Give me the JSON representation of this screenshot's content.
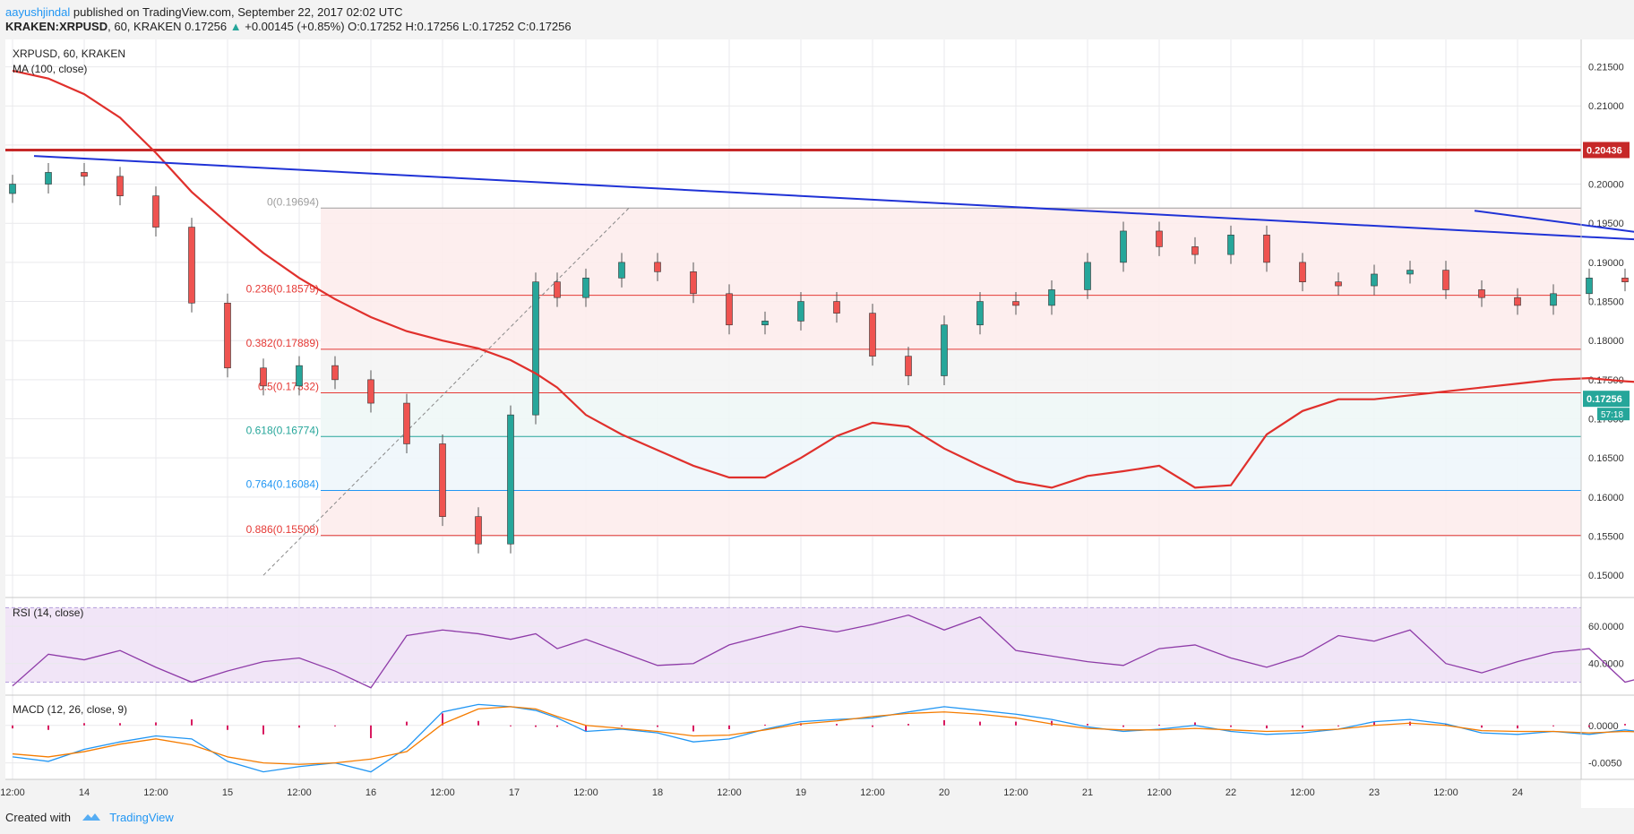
{
  "header": {
    "author": "aayushjindal",
    "published_text": "published on TradingView.com, September 22, 2017 02:02 UTC",
    "symbol_line_prefix": "KRAKEN:XRPUSD, 60, KRAKEN",
    "last": "0.17256",
    "change": "+0.00145 (+0.85%)",
    "ohlc": {
      "o": "0.17252",
      "h": "0.17256",
      "l": "0.17252",
      "c": "0.17256"
    }
  },
  "footer": {
    "created_with": "Created with",
    "brand": "TradingView"
  },
  "colors": {
    "up": "#26a69a",
    "down": "#ef5350",
    "ma": "#e0302c",
    "trend": "#1f32d6",
    "resistance": "#c62828",
    "fib_red": "#e53935",
    "fib_green": "#26a69a",
    "fib_blue": "#2196f3",
    "rsi": "#8e3ba8",
    "macd": "#2196f3",
    "signal": "#f57c00",
    "hist": "#d81b60"
  },
  "chart_data": [
    {
      "type": "candlestick",
      "title": "XRPUSD, 60, KRAKEN",
      "indicator_label": "MA (100, close)",
      "ylim": [
        0.1475,
        0.2185
      ],
      "y_ticks": [
        "0.15000",
        "0.15500",
        "0.16000",
        "0.16500",
        "0.17000",
        "0.17500",
        "0.18000",
        "0.18500",
        "0.19000",
        "0.19500",
        "0.20000",
        "0.20500",
        "0.21000",
        "0.21500"
      ],
      "x_ticks": [
        "12:00",
        "14",
        "12:00",
        "15",
        "12:00",
        "16",
        "12:00",
        "17",
        "12:00",
        "18",
        "12:00",
        "19",
        "12:00",
        "20",
        "12:00",
        "21",
        "12:00",
        "22",
        "12:00",
        "23",
        "12:00",
        "24"
      ],
      "price_label": "0.17256",
      "countdown_label": "57:18",
      "resistance": {
        "value": 0.20436,
        "label": "0.20436"
      },
      "fib_levels": [
        {
          "ratio": "0",
          "value": 0.19694,
          "label": "0(0.19694)"
        },
        {
          "ratio": "0.236",
          "value": 0.18579,
          "label": "0.236(0.18579)"
        },
        {
          "ratio": "0.382",
          "value": 0.17889,
          "label": "0.382(0.17889)"
        },
        {
          "ratio": "0.5",
          "value": 0.17332,
          "label": "0.5(0.17332)"
        },
        {
          "ratio": "0.618",
          "value": 0.16774,
          "label": "0.618(0.16774)"
        },
        {
          "ratio": "0.764",
          "value": 0.16084,
          "label": "0.764(0.16084)"
        },
        {
          "ratio": "0.886",
          "value": 0.15508,
          "label": "0.886(0.15508)"
        }
      ],
      "trendlines": [
        {
          "x1": 0.3,
          "y1": 0.2036,
          "x2": 33.4,
          "y2": 0.1878
        },
        {
          "x1": 20.4,
          "y1": 0.1966,
          "x2": 33.3,
          "y2": 0.181
        }
      ],
      "forecast": [
        {
          "x1": 27.8,
          "y1": 0.1733,
          "x2": 28.3,
          "y2": 0.1785
        },
        {
          "x1": 28.95,
          "y1": 0.1785,
          "x2": 29.25,
          "y2": 0.1653
        }
      ],
      "x": [
        0.0,
        0.5,
        1.0,
        1.5,
        2.0,
        2.5,
        3.0,
        3.5,
        4.0,
        4.5,
        5.0,
        5.5,
        6.0,
        6.5,
        6.95,
        7.3,
        7.6,
        8.0,
        8.5,
        9.0,
        9.5,
        10.0,
        10.5,
        11.0,
        11.5,
        12.0,
        12.5,
        13.0,
        13.5,
        14.0,
        14.5,
        15.0,
        15.5,
        16.0,
        16.5,
        17.0,
        17.5,
        18.0,
        18.5,
        19.0,
        19.5,
        20.0,
        20.5,
        21.0,
        21.5,
        22.0,
        22.5,
        23.0,
        23.5,
        24.0,
        24.5,
        25.0,
        25.5,
        26.0,
        26.5,
        27.0,
        27.4
      ],
      "close": [
        0.2,
        0.2015,
        0.201,
        0.1985,
        0.1945,
        0.1848,
        0.1765,
        0.1742,
        0.1768,
        0.175,
        0.172,
        0.1668,
        0.1575,
        0.154,
        0.1705,
        0.1875,
        0.1855,
        0.188,
        0.19,
        0.1888,
        0.186,
        0.182,
        0.1825,
        0.185,
        0.1835,
        0.178,
        0.1755,
        0.182,
        0.185,
        0.1845,
        0.1865,
        0.19,
        0.194,
        0.192,
        0.191,
        0.1935,
        0.19,
        0.1875,
        0.187,
        0.1885,
        0.189,
        0.1865,
        0.1855,
        0.1845,
        0.186,
        0.188,
        0.1875,
        0.184,
        0.1815,
        0.181,
        0.182,
        0.1825,
        0.18,
        0.176,
        0.1745,
        0.1725,
        0.1726
      ],
      "ma100": [
        0.2145,
        0.2135,
        0.2115,
        0.2085,
        0.204,
        0.199,
        0.195,
        0.1912,
        0.188,
        0.1853,
        0.183,
        0.1812,
        0.18,
        0.179,
        0.1775,
        0.1758,
        0.174,
        0.1705,
        0.168,
        0.166,
        0.164,
        0.1625,
        0.1625,
        0.165,
        0.1678,
        0.1695,
        0.169,
        0.1662,
        0.164,
        0.162,
        0.1612,
        0.1627,
        0.1633,
        0.164,
        0.1612,
        0.1615,
        0.168,
        0.171,
        0.1725,
        0.1725,
        0.173,
        0.1735,
        0.174,
        0.1745,
        0.175,
        0.1752,
        0.1748,
        0.1745,
        0.1745,
        0.1748,
        0.1745,
        0.174,
        0.1738,
        0.1738,
        0.174,
        0.1745,
        0.1748
      ]
    },
    {
      "type": "line",
      "title": "RSI (14, close)",
      "ylim": [
        24,
        74
      ],
      "y_ticks": [
        "40.0000",
        "60.0000"
      ],
      "bands": [
        30,
        70
      ],
      "x": [
        0.0,
        0.5,
        1.0,
        1.5,
        2.0,
        2.5,
        3.0,
        3.5,
        4.0,
        4.5,
        5.0,
        5.5,
        6.0,
        6.5,
        6.95,
        7.3,
        7.6,
        8.0,
        8.5,
        9.0,
        9.5,
        10.0,
        10.5,
        11.0,
        11.5,
        12.0,
        12.5,
        13.0,
        13.5,
        14.0,
        14.5,
        15.0,
        15.5,
        16.0,
        16.5,
        17.0,
        17.5,
        18.0,
        18.5,
        19.0,
        19.5,
        20.0,
        20.5,
        21.0,
        21.5,
        22.0,
        22.5,
        23.0,
        23.5,
        24.0,
        24.5,
        25.0,
        25.5,
        26.0,
        26.5,
        27.0,
        27.4
      ],
      "values": [
        28,
        45,
        42,
        47,
        38,
        30,
        36,
        41,
        43,
        36,
        27,
        55,
        58,
        56,
        53,
        56,
        48,
        53,
        46,
        39,
        40,
        50,
        55,
        60,
        57,
        61,
        66,
        58,
        65,
        47,
        44,
        41,
        39,
        48,
        50,
        43,
        38,
        44,
        55,
        52,
        58,
        40,
        35,
        41,
        46,
        48,
        30,
        35,
        31,
        33,
        35,
        37,
        34,
        35,
        37,
        36,
        35
      ]
    },
    {
      "type": "line",
      "title": "MACD (12, 26, close, 9)",
      "ylim": [
        -0.0072,
        0.0038
      ],
      "y_ticks": [
        "-0.0050",
        "0.0000"
      ],
      "x": [
        0.0,
        0.5,
        1.0,
        1.5,
        2.0,
        2.5,
        3.0,
        3.5,
        4.0,
        4.5,
        5.0,
        5.5,
        6.0,
        6.5,
        6.95,
        7.3,
        7.6,
        8.0,
        8.5,
        9.0,
        9.5,
        10.0,
        10.5,
        11.0,
        11.5,
        12.0,
        12.5,
        13.0,
        13.5,
        14.0,
        14.5,
        15.0,
        15.5,
        16.0,
        16.5,
        17.0,
        17.5,
        18.0,
        18.5,
        19.0,
        19.5,
        20.0,
        20.5,
        21.0,
        21.5,
        22.0,
        22.5,
        23.0,
        23.5,
        24.0,
        24.5,
        25.0,
        25.5,
        26.0,
        26.5,
        27.0,
        27.4
      ],
      "series": [
        {
          "name": "MACD",
          "values": [
            -0.0042,
            -0.0048,
            -0.0032,
            -0.0022,
            -0.0014,
            -0.0018,
            -0.0048,
            -0.0062,
            -0.0055,
            -0.005,
            -0.0062,
            -0.003,
            0.0018,
            0.0028,
            0.0025,
            0.002,
            0.001,
            -0.0008,
            -0.0005,
            -0.001,
            -0.0022,
            -0.0018,
            -0.0005,
            0.0005,
            0.0008,
            0.001,
            0.0018,
            0.0025,
            0.002,
            0.0015,
            0.0008,
            -0.0002,
            -0.0008,
            -0.0005,
            0.0,
            -0.0008,
            -0.0012,
            -0.001,
            -0.0005,
            0.0005,
            0.0008,
            0.0002,
            -0.001,
            -0.0012,
            -0.0008,
            -0.0012,
            -0.0006,
            -0.0012,
            -0.0022,
            -0.0026,
            -0.0026,
            -0.0024,
            -0.0022,
            -0.002,
            -0.0019,
            -0.0018,
            -0.0018
          ]
        },
        {
          "name": "Signal",
          "values": [
            -0.0038,
            -0.0042,
            -0.0035,
            -0.0025,
            -0.0018,
            -0.0026,
            -0.0042,
            -0.005,
            -0.0052,
            -0.005,
            -0.0045,
            -0.0035,
            0.0002,
            0.0022,
            0.0025,
            0.0022,
            0.0012,
            0.0,
            -0.0004,
            -0.0008,
            -0.0014,
            -0.0013,
            -0.0006,
            0.0002,
            0.0006,
            0.0012,
            0.0016,
            0.0018,
            0.0015,
            0.001,
            0.0002,
            -0.0004,
            -0.0006,
            -0.0006,
            -0.0004,
            -0.0006,
            -0.0008,
            -0.0007,
            -0.0005,
            0.0,
            0.0003,
            0.0,
            -0.0007,
            -0.0008,
            -0.0008,
            -0.001,
            -0.0008,
            -0.001,
            -0.0016,
            -0.002,
            -0.0022,
            -0.0022,
            -0.0021,
            -0.002,
            -0.002,
            -0.0019,
            -0.0019
          ]
        }
      ],
      "histogram": [
        -0.0004,
        -0.0006,
        0.0003,
        0.0003,
        0.0004,
        0.0008,
        -0.0006,
        -0.0012,
        -0.0003,
        0.0,
        -0.0017,
        0.0005,
        0.0016,
        0.0006,
        0.0,
        -0.0002,
        -0.0002,
        -0.0008,
        -0.0001,
        -0.0002,
        -0.0008,
        -0.0005,
        0.0001,
        0.0003,
        0.0002,
        -0.0002,
        0.0002,
        0.0007,
        0.0005,
        0.0005,
        0.0006,
        0.0002,
        -0.0002,
        0.0001,
        0.0004,
        -0.0002,
        -0.0004,
        -0.0003,
        0.0,
        0.0005,
        0.0005,
        0.0002,
        -0.0003,
        -0.0004,
        0.0,
        -0.0002,
        0.0002,
        -0.0002,
        -0.0006,
        -0.0006,
        -0.0004,
        -0.0002,
        -0.0001,
        0.0,
        0.0001,
        0.0001,
        0.0001
      ]
    }
  ]
}
